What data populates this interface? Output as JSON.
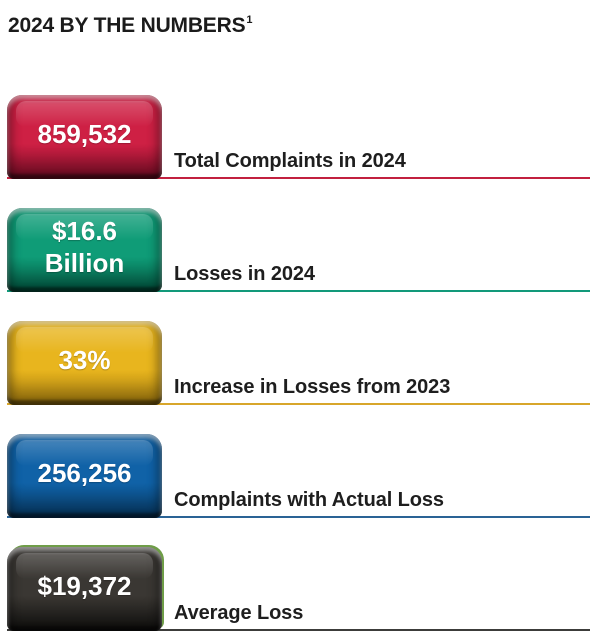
{
  "title": {
    "text": "2024 BY THE NUMBERS",
    "footnote_marker": "1"
  },
  "chart_data": {
    "type": "table",
    "title": "2024 BY THE NUMBERS",
    "legend_position": "none",
    "grid": false,
    "rows": [
      {
        "value": "859,532",
        "value_numeric": 859532,
        "label": "Total Complaints in 2024",
        "colors": {
          "base": "#ce2044",
          "deep": "#7e0e28",
          "line": "#c2203f"
        }
      },
      {
        "value": "$16.6 Billion",
        "value_numeric": 16600000000,
        "label": "Losses in 2024",
        "colors": {
          "base": "#0f9c77",
          "deep": "#045c45",
          "line": "#12997a"
        }
      },
      {
        "value": "33%",
        "value_numeric": 33,
        "label": "Increase in Losses from 2023",
        "colors": {
          "base": "#e8b51e",
          "deep": "#a97f10",
          "line": "#d8a62b"
        }
      },
      {
        "value": "256,256",
        "value_numeric": 256256,
        "label": "Complaints with Actual Loss",
        "colors": {
          "base": "#1062a7",
          "deep": "#083c68",
          "line": "#2a6395"
        }
      },
      {
        "value": "$19,372",
        "value_numeric": 19372,
        "label": "Average Loss",
        "colors": {
          "base": "#3a3733",
          "deep": "#141311",
          "line": "#3c3c3a",
          "accent": "#6f9d48"
        }
      }
    ]
  }
}
